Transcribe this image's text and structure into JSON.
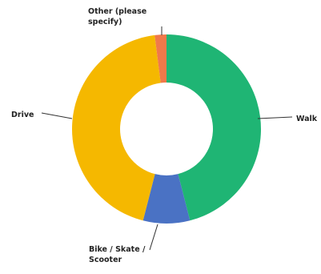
{
  "chart_data": {
    "type": "pie",
    "donut": true,
    "title": "",
    "legend": "none",
    "slices": [
      {
        "label": "Walk",
        "value": 46,
        "color": "#1fb574"
      },
      {
        "label": "Bike / Skate / Scooter",
        "value": 8,
        "color": "#4a72c4"
      },
      {
        "label": "Drive",
        "value": 44,
        "color": "#f5b800"
      },
      {
        "label": "Other (please specify)",
        "value": 2,
        "color": "#f0794a"
      }
    ]
  }
}
